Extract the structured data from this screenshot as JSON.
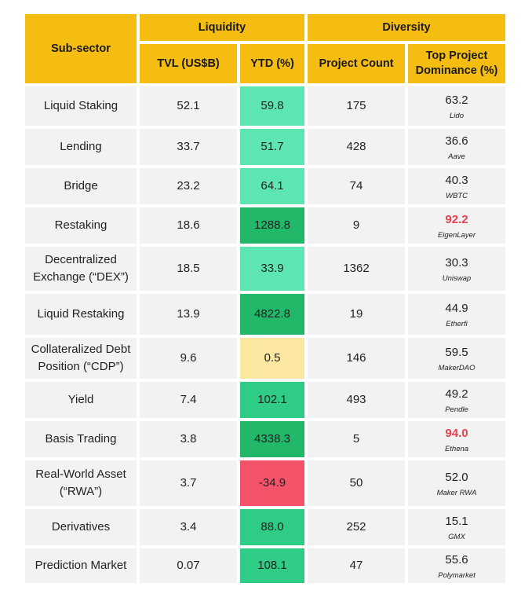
{
  "header": {
    "sub_sector": "Sub-sector",
    "liquidity": "Liquidity",
    "diversity": "Diversity",
    "tvl": "TVL (US$B)",
    "ytd": "YTD (%)",
    "project_count": "Project Count",
    "top_dominance": "Top Project Dominance (%)"
  },
  "colors": {
    "header": "#F5BC12",
    "row_bg": "#F2F2F2",
    "ytd_light_green": "#5EE6B2",
    "ytd_medium_green": "#2FCC86",
    "ytd_dark_green": "#22B86A",
    "ytd_yellow": "#FBE7A0",
    "ytd_red": "#F5536A",
    "highlight_red_text": "#E84154"
  },
  "rows": [
    {
      "sector": "Liquid Staking",
      "tvl": "52.1",
      "ytd": "59.8",
      "ytd_color": "#5EE6B2",
      "count": "175",
      "dominance": "63.2",
      "project": "Lido",
      "highlight": false
    },
    {
      "sector": "Lending",
      "tvl": "33.7",
      "ytd": "51.7",
      "ytd_color": "#5EE6B2",
      "count": "428",
      "dominance": "36.6",
      "project": "Aave",
      "highlight": false
    },
    {
      "sector": "Bridge",
      "tvl": "23.2",
      "ytd": "64.1",
      "ytd_color": "#5EE6B2",
      "count": "74",
      "dominance": "40.3",
      "project": "WBTC",
      "highlight": false
    },
    {
      "sector": "Restaking",
      "tvl": "18.6",
      "ytd": "1288.8",
      "ytd_color": "#22B86A",
      "count": "9",
      "dominance": "92.2",
      "project": "EigenLayer",
      "highlight": true
    },
    {
      "sector": "Decentralized Exchange (“DEX”)",
      "tvl": "18.5",
      "ytd": "33.9",
      "ytd_color": "#5EE6B2",
      "count": "1362",
      "dominance": "30.3",
      "project": "Uniswap",
      "highlight": false
    },
    {
      "sector": "Liquid Restaking",
      "tvl": "13.9",
      "ytd": "4822.8",
      "ytd_color": "#22B86A",
      "count": "19",
      "dominance": "44.9",
      "project": "Etherfi",
      "highlight": false
    },
    {
      "sector": "Collateralized Debt Position (“CDP”)",
      "tvl": "9.6",
      "ytd": "0.5",
      "ytd_color": "#FBE7A0",
      "count": "146",
      "dominance": "59.5",
      "project": "MakerDAO",
      "highlight": false
    },
    {
      "sector": "Yield",
      "tvl": "7.4",
      "ytd": "102.1",
      "ytd_color": "#2FCC86",
      "count": "493",
      "dominance": "49.2",
      "project": "Pendle",
      "highlight": false
    },
    {
      "sector": "Basis Trading",
      "tvl": "3.8",
      "ytd": "4338.3",
      "ytd_color": "#22B86A",
      "count": "5",
      "dominance": "94.0",
      "project": "Ethena",
      "highlight": true
    },
    {
      "sector": "Real-World Asset (“RWA”)",
      "tvl": "3.7",
      "ytd": "-34.9",
      "ytd_color": "#F5536A",
      "count": "50",
      "dominance": "52.0",
      "project": "Maker RWA",
      "highlight": false
    },
    {
      "sector": "Derivatives",
      "tvl": "3.4",
      "ytd": "88.0",
      "ytd_color": "#2FCC86",
      "count": "252",
      "dominance": "15.1",
      "project": "GMX",
      "highlight": false
    },
    {
      "sector": "Prediction Market",
      "tvl": "0.07",
      "ytd": "108.1",
      "ytd_color": "#2FCC86",
      "count": "47",
      "dominance": "55.6",
      "project": "Polymarket",
      "highlight": false
    }
  ]
}
